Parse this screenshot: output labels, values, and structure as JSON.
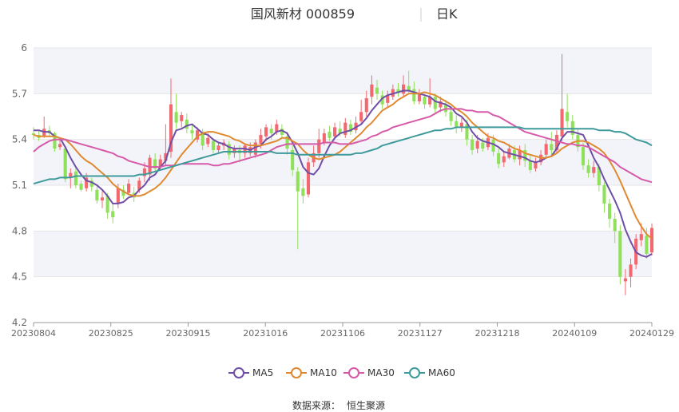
{
  "header": {
    "title": "国风新材 000859",
    "period": "日K"
  },
  "source": {
    "label": "数据来源：",
    "name": "恒生聚源"
  },
  "colors": {
    "up": "#f2686e",
    "down": "#8fe05a",
    "ma5": "#6f4fa5",
    "ma10": "#e08a30",
    "ma30": "#d65aa8",
    "ma60": "#3f9b9b",
    "band": "#f3f4fa",
    "grid": "#e6e6e6"
  },
  "chart_data": {
    "type": "candlestick",
    "ylim": [
      4.2,
      6.0
    ],
    "yticks": [
      "4.2",
      "4.5",
      "4.8",
      "5.1",
      "5.4",
      "5.7",
      "6"
    ],
    "xticks": [
      "20230804",
      "20230825",
      "20230915",
      "20231016",
      "20231106",
      "20231127",
      "20231218",
      "20240109",
      "20240129"
    ],
    "legend": [
      "MA5",
      "MA10",
      "MA30",
      "MA60"
    ],
    "ma_keys": [
      "ma5",
      "ma10",
      "ma30",
      "ma60"
    ],
    "candles": [
      [
        5.44,
        5.43,
        5.48,
        5.4
      ],
      [
        5.43,
        5.41,
        5.46,
        5.39
      ],
      [
        5.42,
        5.47,
        5.55,
        5.41
      ],
      [
        5.46,
        5.44,
        5.49,
        5.42
      ],
      [
        5.44,
        5.34,
        5.45,
        5.32
      ],
      [
        5.35,
        5.37,
        5.4,
        5.33
      ],
      [
        5.34,
        5.14,
        5.35,
        5.12
      ],
      [
        5.15,
        5.18,
        5.21,
        5.08
      ],
      [
        5.19,
        5.1,
        5.22,
        5.08
      ],
      [
        5.11,
        5.07,
        5.13,
        5.06
      ],
      [
        5.08,
        5.15,
        5.18,
        5.06
      ],
      [
        5.13,
        5.09,
        5.15,
        5.06
      ],
      [
        5.07,
        5.0,
        5.1,
        4.98
      ],
      [
        5.0,
        5.02,
        5.06,
        4.95
      ],
      [
        5.03,
        4.92,
        5.05,
        4.88
      ],
      [
        4.93,
        4.89,
        4.98,
        4.85
      ],
      [
        4.98,
        5.08,
        5.11,
        4.95
      ],
      [
        5.07,
        5.03,
        5.1,
        5.01
      ],
      [
        5.05,
        5.11,
        5.14,
        5.04
      ],
      [
        5.05,
        5.02,
        5.09,
        4.99
      ],
      [
        5.07,
        5.13,
        5.15,
        5.05
      ],
      [
        5.16,
        5.21,
        5.25,
        5.12
      ],
      [
        5.17,
        5.28,
        5.3,
        5.13
      ],
      [
        5.27,
        5.21,
        5.31,
        5.19
      ],
      [
        5.22,
        5.27,
        5.3,
        5.2
      ],
      [
        5.26,
        5.31,
        5.5,
        5.23
      ],
      [
        5.32,
        5.63,
        5.8,
        5.28
      ],
      [
        5.58,
        5.51,
        5.7,
        5.47
      ],
      [
        5.52,
        5.56,
        5.58,
        5.48
      ],
      [
        5.53,
        5.47,
        5.57,
        5.44
      ],
      [
        5.46,
        5.44,
        5.5,
        5.4
      ],
      [
        5.4,
        5.46,
        5.48,
        5.38
      ],
      [
        5.45,
        5.36,
        5.47,
        5.33
      ],
      [
        5.37,
        5.41,
        5.44,
        5.35
      ],
      [
        5.39,
        5.33,
        5.41,
        5.31
      ],
      [
        5.33,
        5.36,
        5.38,
        5.31
      ],
      [
        5.36,
        5.38,
        5.4,
        5.33
      ],
      [
        5.37,
        5.3,
        5.39,
        5.27
      ],
      [
        5.31,
        5.34,
        5.36,
        5.28
      ],
      [
        5.33,
        5.31,
        5.36,
        5.25
      ],
      [
        5.31,
        5.36,
        5.37,
        5.28
      ],
      [
        5.31,
        5.35,
        5.38,
        5.29
      ],
      [
        5.3,
        5.38,
        5.4,
        5.28
      ],
      [
        5.37,
        5.43,
        5.47,
        5.34
      ],
      [
        5.42,
        5.48,
        5.5,
        5.39
      ],
      [
        5.47,
        5.44,
        5.5,
        5.4
      ],
      [
        5.45,
        5.5,
        5.53,
        5.43
      ],
      [
        5.47,
        5.43,
        5.5,
        5.41
      ],
      [
        5.42,
        5.34,
        5.45,
        5.3
      ],
      [
        5.33,
        5.2,
        5.36,
        5.16
      ],
      [
        5.19,
        5.06,
        5.22,
        4.68
      ],
      [
        5.08,
        5.03,
        5.14,
        4.98
      ],
      [
        5.04,
        5.25,
        5.28,
        5.02
      ],
      [
        5.25,
        5.31,
        5.36,
        5.22
      ],
      [
        5.31,
        5.4,
        5.47,
        5.28
      ],
      [
        5.38,
        5.44,
        5.47,
        5.36
      ],
      [
        5.45,
        5.41,
        5.49,
        5.39
      ],
      [
        5.42,
        5.48,
        5.51,
        5.4
      ],
      [
        5.47,
        5.44,
        5.52,
        5.42
      ],
      [
        5.43,
        5.51,
        5.54,
        5.41
      ],
      [
        5.5,
        5.45,
        5.53,
        5.43
      ],
      [
        5.46,
        5.51,
        5.55,
        5.44
      ],
      [
        5.52,
        5.58,
        5.66,
        5.5
      ],
      [
        5.58,
        5.67,
        5.72,
        5.55
      ],
      [
        5.68,
        5.76,
        5.82,
        5.63
      ],
      [
        5.74,
        5.7,
        5.79,
        5.66
      ],
      [
        5.69,
        5.63,
        5.72,
        5.6
      ],
      [
        5.64,
        5.69,
        5.72,
        5.61
      ],
      [
        5.68,
        5.73,
        5.76,
        5.66
      ],
      [
        5.73,
        5.71,
        5.77,
        5.68
      ],
      [
        5.7,
        5.76,
        5.82,
        5.68
      ],
      [
        5.75,
        5.72,
        5.85,
        5.7
      ],
      [
        5.73,
        5.65,
        5.78,
        5.63
      ],
      [
        5.65,
        5.7,
        5.73,
        5.63
      ],
      [
        5.68,
        5.63,
        5.7,
        5.6
      ],
      [
        5.63,
        5.68,
        5.8,
        5.61
      ],
      [
        5.68,
        5.6,
        5.7,
        5.57
      ],
      [
        5.61,
        5.65,
        5.68,
        5.58
      ],
      [
        5.63,
        5.58,
        5.66,
        5.55
      ],
      [
        5.58,
        5.52,
        5.61,
        5.49
      ],
      [
        5.52,
        5.48,
        5.56,
        5.44
      ],
      [
        5.48,
        5.51,
        5.54,
        5.45
      ],
      [
        5.5,
        5.4,
        5.53,
        5.36
      ],
      [
        5.4,
        5.33,
        5.43,
        5.3
      ],
      [
        5.34,
        5.39,
        5.43,
        5.31
      ],
      [
        5.38,
        5.34,
        5.41,
        5.32
      ],
      [
        5.35,
        5.41,
        5.44,
        5.33
      ],
      [
        5.4,
        5.32,
        5.43,
        5.29
      ],
      [
        5.31,
        5.24,
        5.34,
        5.21
      ],
      [
        5.25,
        5.29,
        5.32,
        5.22
      ],
      [
        5.28,
        5.34,
        5.37,
        5.27
      ],
      [
        5.33,
        5.27,
        5.36,
        5.25
      ],
      [
        5.27,
        5.33,
        5.36,
        5.23
      ],
      [
        5.33,
        5.26,
        5.37,
        5.22
      ],
      [
        5.26,
        5.2,
        5.3,
        5.18
      ],
      [
        5.21,
        5.25,
        5.28,
        5.19
      ],
      [
        5.25,
        5.3,
        5.33,
        5.23
      ],
      [
        5.3,
        5.37,
        5.4,
        5.28
      ],
      [
        5.37,
        5.33,
        5.45,
        5.3
      ],
      [
        5.33,
        5.43,
        5.46,
        5.31
      ],
      [
        5.42,
        5.6,
        5.96,
        5.39
      ],
      [
        5.58,
        5.52,
        5.7,
        5.48
      ],
      [
        5.52,
        5.43,
        5.56,
        5.4
      ],
      [
        5.43,
        5.35,
        5.47,
        5.32
      ],
      [
        5.35,
        5.23,
        5.38,
        5.2
      ],
      [
        5.23,
        5.18,
        5.27,
        5.15
      ],
      [
        5.18,
        5.22,
        5.26,
        5.15
      ],
      [
        5.22,
        5.1,
        5.24,
        5.06
      ],
      [
        5.1,
        4.98,
        5.12,
        4.92
      ],
      [
        4.98,
        4.88,
        5.01,
        4.82
      ],
      [
        4.88,
        4.8,
        4.92,
        4.72
      ],
      [
        4.8,
        4.5,
        4.84,
        4.45
      ],
      [
        4.47,
        4.49,
        4.55,
        4.38
      ],
      [
        4.5,
        4.58,
        4.62,
        4.43
      ],
      [
        4.58,
        4.75,
        4.78,
        4.55
      ],
      [
        4.74,
        4.78,
        4.85,
        4.7
      ],
      [
        4.77,
        4.65,
        4.82,
        4.62
      ],
      [
        4.66,
        4.82,
        4.85,
        4.64
      ]
    ],
    "ma": {
      "ma5": [
        5.46,
        5.46,
        5.45,
        5.45,
        5.42,
        5.41,
        5.35,
        5.28,
        5.22,
        5.17,
        5.13,
        5.12,
        5.1,
        5.07,
        5.03,
        4.98,
        4.98,
        4.99,
        5.02,
        5.03,
        5.07,
        5.1,
        5.15,
        5.17,
        5.22,
        5.26,
        5.38,
        5.46,
        5.47,
        5.49,
        5.5,
        5.47,
        5.44,
        5.43,
        5.4,
        5.38,
        5.37,
        5.35,
        5.34,
        5.34,
        5.34,
        5.33,
        5.35,
        5.36,
        5.4,
        5.42,
        5.45,
        5.46,
        5.44,
        5.38,
        5.31,
        5.22,
        5.18,
        5.17,
        5.21,
        5.29,
        5.36,
        5.41,
        5.44,
        5.45,
        5.46,
        5.48,
        5.5,
        5.54,
        5.59,
        5.63,
        5.67,
        5.69,
        5.7,
        5.71,
        5.72,
        5.72,
        5.71,
        5.7,
        5.69,
        5.68,
        5.65,
        5.64,
        5.63,
        5.61,
        5.57,
        5.55,
        5.51,
        5.45,
        5.41,
        5.39,
        5.38,
        5.37,
        5.35,
        5.32,
        5.31,
        5.3,
        5.29,
        5.28,
        5.26,
        5.25,
        5.26,
        5.28,
        5.29,
        5.34,
        5.41,
        5.45,
        5.45,
        5.44,
        5.43,
        5.36,
        5.28,
        5.22,
        5.14,
        5.07,
        5.0,
        4.92,
        4.81,
        4.73,
        4.66,
        4.64,
        4.63,
        4.65
      ],
      "ma10": [
        5.43,
        5.42,
        5.42,
        5.42,
        5.42,
        5.41,
        5.4,
        5.37,
        5.33,
        5.29,
        5.26,
        5.24,
        5.21,
        5.18,
        5.15,
        5.11,
        5.08,
        5.06,
        5.04,
        5.03,
        5.03,
        5.04,
        5.06,
        5.08,
        5.11,
        5.15,
        5.2,
        5.25,
        5.3,
        5.34,
        5.38,
        5.42,
        5.44,
        5.45,
        5.45,
        5.44,
        5.43,
        5.42,
        5.4,
        5.39,
        5.37,
        5.36,
        5.36,
        5.36,
        5.37,
        5.38,
        5.39,
        5.41,
        5.41,
        5.39,
        5.37,
        5.33,
        5.3,
        5.28,
        5.27,
        5.28,
        5.29,
        5.3,
        5.32,
        5.35,
        5.38,
        5.41,
        5.44,
        5.48,
        5.51,
        5.55,
        5.59,
        5.61,
        5.63,
        5.66,
        5.68,
        5.7,
        5.7,
        5.7,
        5.71,
        5.7,
        5.69,
        5.67,
        5.65,
        5.63,
        5.6,
        5.58,
        5.55,
        5.51,
        5.48,
        5.45,
        5.42,
        5.41,
        5.39,
        5.38,
        5.36,
        5.34,
        5.33,
        5.31,
        5.3,
        5.29,
        5.28,
        5.28,
        5.29,
        5.31,
        5.34,
        5.36,
        5.38,
        5.39,
        5.39,
        5.38,
        5.36,
        5.34,
        5.31,
        5.26,
        5.2,
        5.13,
        5.05,
        4.97,
        4.89,
        4.83,
        4.78,
        4.75
      ],
      "ma30": [
        5.32,
        5.35,
        5.37,
        5.39,
        5.4,
        5.4,
        5.4,
        5.39,
        5.38,
        5.37,
        5.36,
        5.35,
        5.34,
        5.33,
        5.32,
        5.31,
        5.29,
        5.28,
        5.26,
        5.25,
        5.24,
        5.23,
        5.22,
        5.22,
        5.22,
        5.23,
        5.23,
        5.23,
        5.24,
        5.24,
        5.24,
        5.24,
        5.24,
        5.24,
        5.23,
        5.23,
        5.24,
        5.24,
        5.25,
        5.26,
        5.27,
        5.28,
        5.29,
        5.3,
        5.31,
        5.33,
        5.35,
        5.36,
        5.37,
        5.37,
        5.37,
        5.37,
        5.37,
        5.37,
        5.37,
        5.38,
        5.38,
        5.38,
        5.37,
        5.37,
        5.37,
        5.38,
        5.39,
        5.4,
        5.42,
        5.43,
        5.45,
        5.46,
        5.48,
        5.49,
        5.5,
        5.51,
        5.52,
        5.53,
        5.54,
        5.55,
        5.57,
        5.59,
        5.6,
        5.6,
        5.6,
        5.6,
        5.59,
        5.59,
        5.58,
        5.58,
        5.58,
        5.56,
        5.55,
        5.53,
        5.51,
        5.49,
        5.47,
        5.45,
        5.44,
        5.43,
        5.42,
        5.41,
        5.4,
        5.39,
        5.38,
        5.37,
        5.37,
        5.36,
        5.36,
        5.35,
        5.33,
        5.31,
        5.29,
        5.27,
        5.25,
        5.22,
        5.2,
        5.18,
        5.16,
        5.14,
        5.13,
        5.12
      ],
      "ma60": [
        5.11,
        5.12,
        5.13,
        5.14,
        5.14,
        5.15,
        5.15,
        5.15,
        5.16,
        5.16,
        5.16,
        5.16,
        5.16,
        5.16,
        5.16,
        5.16,
        5.16,
        5.16,
        5.16,
        5.16,
        5.17,
        5.17,
        5.18,
        5.19,
        5.2,
        5.21,
        5.22,
        5.23,
        5.24,
        5.25,
        5.26,
        5.27,
        5.28,
        5.29,
        5.3,
        5.31,
        5.32,
        5.32,
        5.32,
        5.32,
        5.32,
        5.32,
        5.32,
        5.32,
        5.32,
        5.32,
        5.31,
        5.31,
        5.31,
        5.31,
        5.3,
        5.3,
        5.3,
        5.3,
        5.3,
        5.3,
        5.3,
        5.3,
        5.3,
        5.3,
        5.3,
        5.31,
        5.31,
        5.32,
        5.33,
        5.34,
        5.36,
        5.37,
        5.38,
        5.39,
        5.4,
        5.41,
        5.42,
        5.43,
        5.44,
        5.45,
        5.46,
        5.46,
        5.47,
        5.47,
        5.48,
        5.48,
        5.48,
        5.48,
        5.48,
        5.48,
        5.48,
        5.48,
        5.48,
        5.48,
        5.48,
        5.48,
        5.48,
        5.47,
        5.47,
        5.47,
        5.47,
        5.47,
        5.47,
        5.47,
        5.47,
        5.47,
        5.47,
        5.47,
        5.47,
        5.47,
        5.47,
        5.46,
        5.46,
        5.46,
        5.45,
        5.45,
        5.44,
        5.42,
        5.4,
        5.39,
        5.38,
        5.36
      ]
    }
  }
}
